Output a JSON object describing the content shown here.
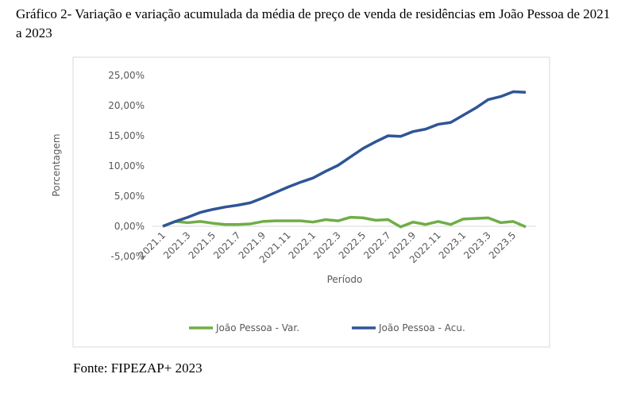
{
  "caption": "Gráfico 2- Variação e variação acumulada da média de preço de venda de residências em João Pessoa de 2021 a 2023",
  "source": "Fonte: FIPEZAP+ 2023",
  "chart_data": {
    "type": "line",
    "x_label": "Período",
    "y_label": "Porcentagem",
    "categories": [
      "2021.1",
      null,
      "2021.3",
      null,
      "2021.5",
      null,
      "2021.7",
      null,
      "2021.9",
      null,
      "2021.11",
      null,
      "2022.1",
      null,
      "2022.3",
      null,
      "2022.5",
      null,
      "2022.7",
      null,
      "2022.9",
      null,
      "2022.11",
      null,
      "2023.1",
      null,
      "2023.3",
      null,
      "2023.5",
      null
    ],
    "series": [
      {
        "name": "João Pessoa - Var.",
        "color": "#70ad47",
        "values": [
          0,
          0.8,
          0.6,
          0.8,
          0.5,
          0.3,
          0.3,
          0.4,
          0.8,
          0.9,
          0.9,
          0.9,
          0.7,
          1.1,
          0.9,
          1.5,
          1.4,
          1.0,
          1.1,
          -0.1,
          0.7,
          0.3,
          0.8,
          0.3,
          1.2,
          1.3,
          1.4,
          0.6,
          0.8,
          -0.1
        ]
      },
      {
        "name": "João Pessoa - Acu.",
        "color": "#2f5597",
        "values": [
          0,
          0.8,
          1.5,
          2.3,
          2.8,
          3.2,
          3.5,
          3.9,
          4.7,
          5.6,
          6.5,
          7.3,
          8.0,
          9.1,
          10.1,
          11.5,
          12.9,
          14.0,
          15.0,
          14.9,
          15.7,
          16.1,
          16.9,
          17.2,
          18.4,
          19.6,
          21.0,
          21.5,
          22.3,
          22.2
        ]
      }
    ],
    "ylim": [
      -5,
      25
    ],
    "yticks": [
      {
        "value": -5,
        "label": "-5,00%"
      },
      {
        "value": 0,
        "label": "0,00%"
      },
      {
        "value": 5,
        "label": "5,00%"
      },
      {
        "value": 10,
        "label": "10,00%"
      },
      {
        "value": 15,
        "label": "15,00%"
      },
      {
        "value": 20,
        "label": "20,00%"
      },
      {
        "value": 25,
        "label": "25,00%"
      }
    ],
    "grid": false,
    "legend": "bottom"
  }
}
